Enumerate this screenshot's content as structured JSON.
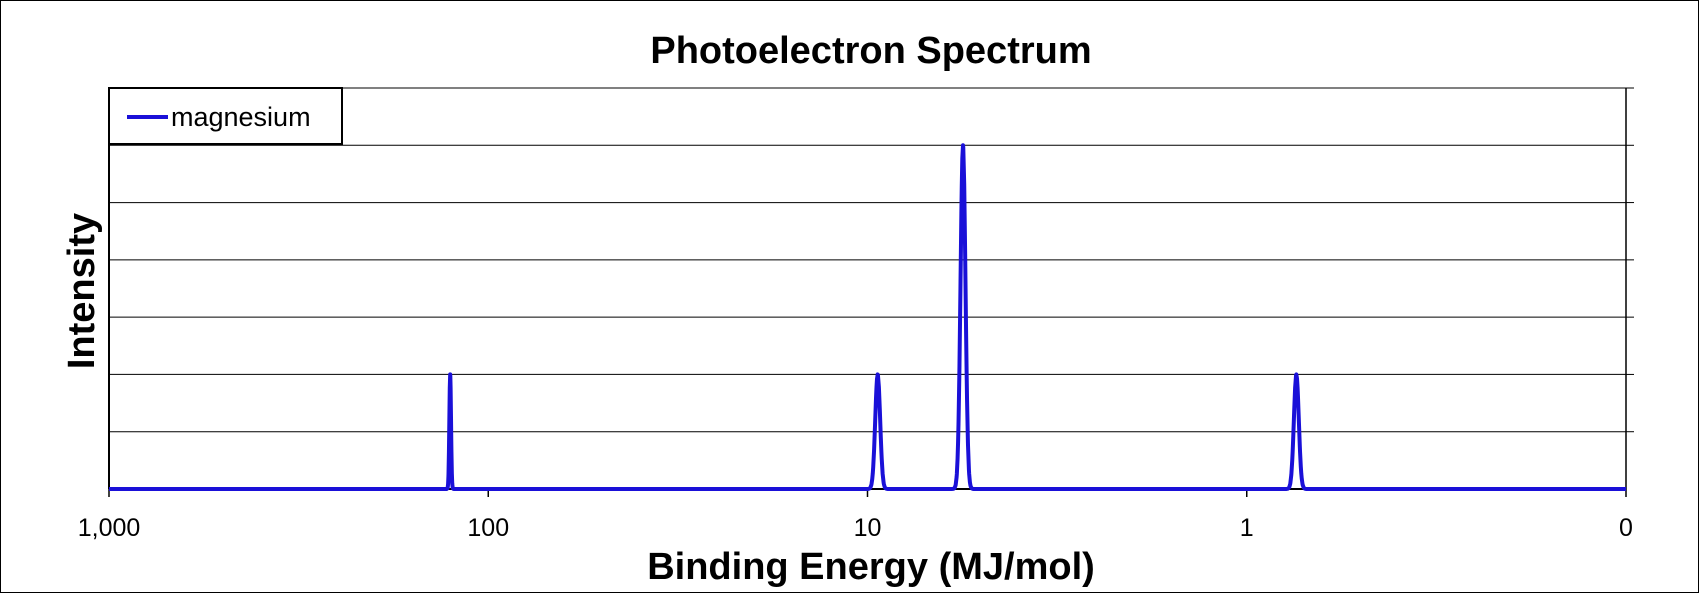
{
  "chart_data": {
    "type": "line",
    "title": "Photoelectron Spectrum",
    "xlabel": "Binding Energy (MJ/mol)",
    "ylabel": "Intensity",
    "x_scale": "log",
    "x_reversed": true,
    "xlim": [
      1000,
      0.1
    ],
    "ylim": [
      0,
      7
    ],
    "x_tick_labels": [
      "1,000",
      "100",
      "10",
      "1",
      "0"
    ],
    "y_tick_labels_shown": false,
    "grid": "horizontal",
    "legend": {
      "position": "top-left",
      "entries": [
        "magnesium"
      ]
    },
    "series": [
      {
        "name": "magnesium",
        "color": "#1a10d8",
        "peaks": [
          {
            "x": 126,
            "height": 2
          },
          {
            "x": 9.4,
            "height": 2
          },
          {
            "x": 5.6,
            "height": 6
          },
          {
            "x": 0.74,
            "height": 2
          }
        ]
      }
    ]
  }
}
